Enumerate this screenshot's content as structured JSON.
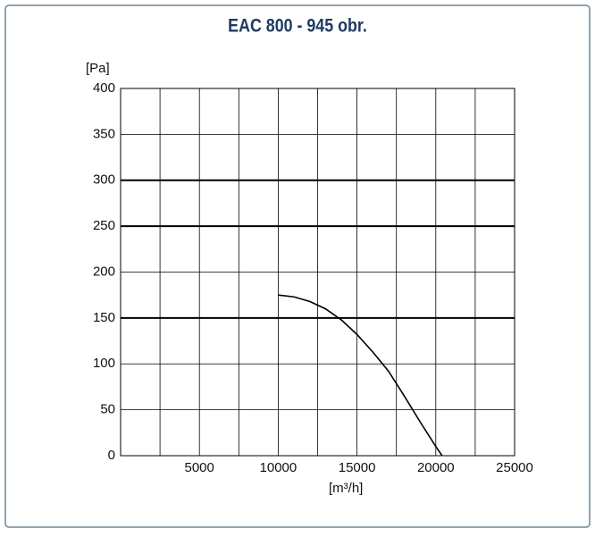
{
  "chart_data": {
    "type": "line",
    "title": "EAC 800 - 945 obr.",
    "y_label": "[Pa]",
    "x_label": "[m³/h]",
    "x": [
      10000,
      11000,
      12000,
      13000,
      14000,
      15000,
      16000,
      17000,
      18000,
      19000,
      20000,
      20400
    ],
    "series": [
      {
        "color": "#000000",
        "values": [
          175,
          173,
          168,
          160,
          148,
          132,
          113,
          92,
          65,
          37,
          10,
          0
        ]
      }
    ],
    "xlim": [
      0,
      25000
    ],
    "xticks": [
      5000,
      10000,
      15000,
      20000,
      25000
    ],
    "x_grid": [
      2500,
      5000,
      7500,
      10000,
      12500,
      15000,
      17500,
      20000,
      22500
    ],
    "ylim": [
      0,
      400
    ],
    "yticks": [
      0,
      50,
      100,
      150,
      200,
      250,
      300,
      350,
      400
    ],
    "emphasized_ylines": [
      150,
      250,
      300
    ],
    "grid": true
  }
}
